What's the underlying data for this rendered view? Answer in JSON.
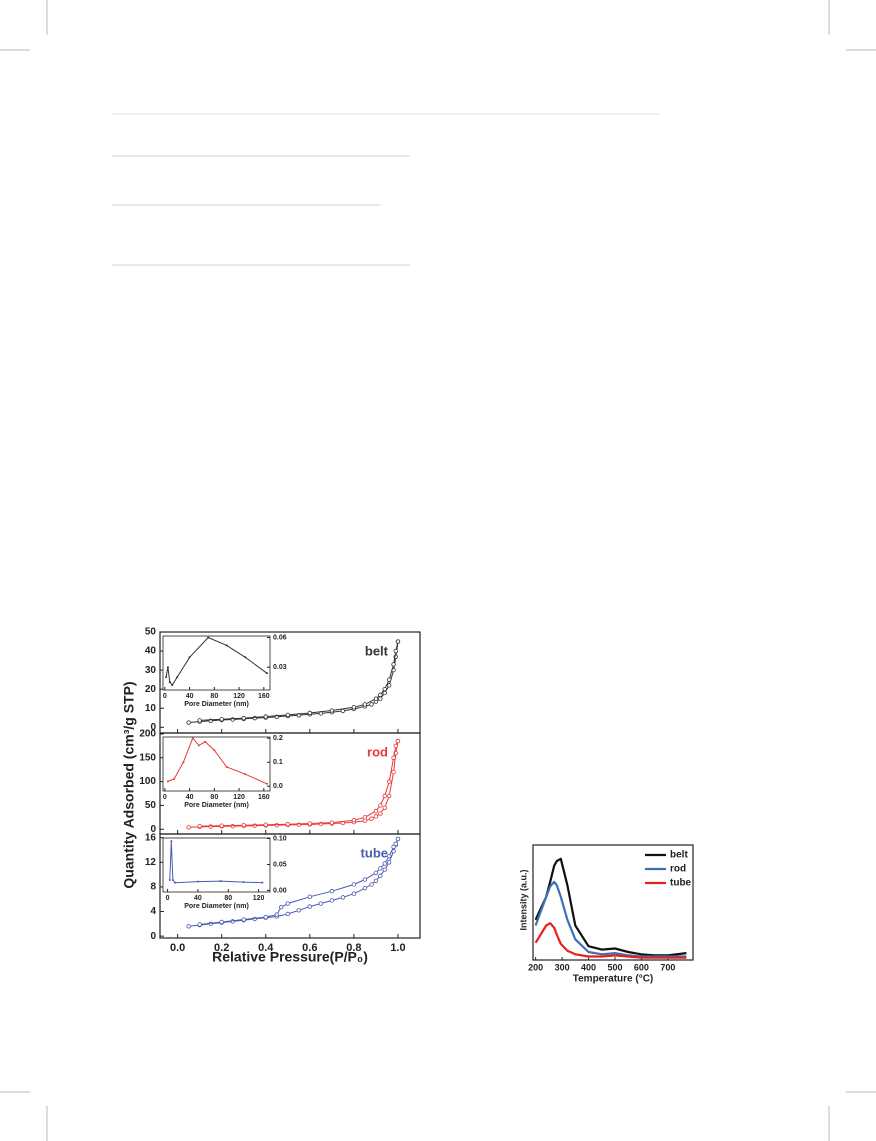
{
  "chart_data": [
    {
      "type": "stacked-line",
      "xlabel": "Relative Pressure(P/P₀)",
      "ylabel": "Quantity Adsorbed (cm³/g STP)",
      "xlim": [
        -0.08,
        1.1
      ],
      "xticks": [
        {
          "value": 0,
          "label": "0.0"
        },
        0.2,
        0.4,
        0.6,
        0.8,
        {
          "value": 1,
          "label": "1.0"
        }
      ],
      "panels": [
        {
          "label": "belt",
          "color": "#333333",
          "ylim": [
            -3,
            50
          ],
          "yticks": [
            0,
            10,
            20,
            30,
            40,
            50
          ],
          "series": [
            {
              "x": [
                0.05,
                0.1,
                0.15,
                0.2,
                0.25,
                0.3,
                0.35,
                0.4,
                0.45,
                0.5,
                0.55,
                0.6,
                0.65,
                0.7,
                0.75,
                0.8,
                0.85,
                0.88,
                0.9,
                0.92,
                0.94,
                0.96,
                0.98,
                0.99,
                1.0
              ],
              "values": [
                2.5,
                3,
                3.4,
                3.8,
                4.1,
                4.4,
                4.8,
                5.1,
                5.5,
                5.9,
                6.3,
                6.8,
                7.3,
                7.9,
                8.6,
                9.6,
                11,
                12,
                13.5,
                15,
                18,
                22,
                30,
                37,
                45
              ]
            },
            {
              "x": [
                1.0,
                0.99,
                0.98,
                0.96,
                0.94,
                0.92,
                0.9,
                0.85,
                0.8,
                0.7,
                0.6,
                0.5,
                0.4,
                0.3,
                0.2,
                0.1
              ],
              "values": [
                45,
                40,
                33,
                25,
                20,
                17,
                15,
                12,
                10.5,
                8.8,
                7.5,
                6.5,
                5.6,
                4.8,
                4.2,
                3.6
              ]
            }
          ],
          "inset": {
            "xlabel": "Pore Diameter (nm)",
            "xlim": [
              -3,
              170
            ],
            "xticks": [
              0,
              40,
              80,
              120,
              160
            ],
            "ylim": [
              0.007,
              0.0615
            ],
            "yticks": [
              0.03,
              0.06
            ],
            "x": [
              2,
              5,
              8,
              12,
              20,
              40,
              70,
              100,
              130,
              165
            ],
            "values": [
              0.02,
              0.03,
              0.015,
              0.012,
              0.02,
              0.04,
              0.06,
              0.052,
              0.04,
              0.024
            ]
          }
        },
        {
          "label": "rod",
          "color": "#e8373a",
          "ylim": [
            -10,
            202
          ],
          "yticks": [
            0,
            50,
            100,
            150,
            200
          ],
          "series": [
            {
              "x": [
                0.05,
                0.1,
                0.15,
                0.2,
                0.25,
                0.3,
                0.35,
                0.4,
                0.45,
                0.5,
                0.55,
                0.6,
                0.65,
                0.7,
                0.75,
                0.8,
                0.85,
                0.88,
                0.9,
                0.92,
                0.94,
                0.96,
                0.98,
                0.99,
                1.0
              ],
              "values": [
                4,
                5,
                5.5,
                6,
                6.5,
                7,
                7.5,
                8,
                8.5,
                9,
                9.5,
                10,
                11,
                12,
                13,
                15,
                18,
                22,
                27,
                33,
                45,
                70,
                120,
                160,
                185
              ]
            },
            {
              "x": [
                1.0,
                0.99,
                0.98,
                0.96,
                0.94,
                0.92,
                0.9,
                0.85,
                0.8,
                0.7,
                0.6,
                0.5,
                0.4,
                0.3,
                0.2,
                0.1
              ],
              "values": [
                185,
                175,
                150,
                100,
                70,
                50,
                38,
                25,
                19,
                14,
                12,
                10.5,
                9.5,
                8.5,
                7.5,
                6.5
              ]
            }
          ],
          "inset": {
            "xlabel": "Pore Diameter (nm)",
            "xlim": [
              -3,
              170
            ],
            "xticks": [
              0,
              40,
              80,
              120,
              160
            ],
            "ylim": [
              -0.02,
              0.205
            ],
            "yticks": [
              {
                "value": 0,
                "label": "0.0"
              },
              0.1,
              0.2
            ],
            "x": [
              5,
              15,
              30,
              45,
              55,
              65,
              80,
              100,
              130,
              165
            ],
            "values": [
              0.02,
              0.03,
              0.1,
              0.2,
              0.17,
              0.185,
              0.15,
              0.08,
              0.05,
              0.01
            ]
          }
        },
        {
          "label": "tube",
          "color": "#4a5bb0",
          "ylim": [
            -0.3,
            16.6
          ],
          "yticks": [
            0,
            4,
            8,
            12,
            16
          ],
          "series": [
            {
              "x": [
                0.05,
                0.1,
                0.15,
                0.2,
                0.25,
                0.3,
                0.35,
                0.4,
                0.45,
                0.5,
                0.55,
                0.6,
                0.65,
                0.7,
                0.75,
                0.8,
                0.85,
                0.88,
                0.9,
                0.92,
                0.94,
                0.96,
                0.98,
                0.99,
                1.0
              ],
              "values": [
                1.6,
                1.8,
                2,
                2.2,
                2.4,
                2.6,
                2.8,
                3,
                3.2,
                3.6,
                4.2,
                4.8,
                5.3,
                5.8,
                6.3,
                6.9,
                7.8,
                8.4,
                9,
                9.8,
                10.8,
                12,
                13.8,
                14.8,
                15.8
              ]
            },
            {
              "x": [
                1.0,
                0.99,
                0.98,
                0.96,
                0.94,
                0.92,
                0.9,
                0.85,
                0.8,
                0.7,
                0.6,
                0.5,
                0.47,
                0.45,
                0.4,
                0.3,
                0.2,
                0.1
              ],
              "values": [
                15.8,
                15,
                14.5,
                13,
                11.8,
                11,
                10.3,
                9.2,
                8.4,
                7.3,
                6.4,
                5.3,
                4.7,
                3.5,
                3.1,
                2.7,
                2.3,
                1.9
              ]
            }
          ],
          "inset": {
            "xlabel": "Pore Diameter (nm)",
            "xlim": [
              -6,
              135
            ],
            "xticks": [
              0,
              40,
              80,
              120
            ],
            "ylim": [
              -0.003,
              0.101
            ],
            "yticks": [
              {
                "value": 0,
                "label": "0.00"
              },
              0.05,
              {
                "value": 0.1,
                "label": "0.10"
              }
            ],
            "x": [
              3,
              5,
              7,
              10,
              40,
              70,
              100,
              125
            ],
            "values": [
              0.02,
              0.095,
              0.02,
              0.015,
              0.017,
              0.018,
              0.016,
              0.015
            ]
          }
        }
      ]
    },
    {
      "type": "line",
      "xlabel": "Temperature (°C)",
      "ylabel": "Intensity (a.u.)",
      "xlim": [
        190,
        795
      ],
      "xticks": [
        200,
        300,
        400,
        500,
        600,
        700
      ],
      "ylim": [
        0,
        100
      ],
      "x": [
        200,
        240,
        255,
        270,
        280,
        295,
        320,
        350,
        400,
        450,
        500,
        550,
        600,
        650,
        700,
        770
      ],
      "series": [
        {
          "name": "belt",
          "color": "#111111",
          "values": [
            35,
            55,
            68,
            82,
            86,
            88,
            65,
            30,
            12,
            9,
            10,
            7,
            5,
            4,
            4,
            6
          ]
        },
        {
          "name": "rod",
          "color": "#3f6fb5",
          "values": [
            30,
            55,
            64,
            68,
            65,
            55,
            35,
            18,
            7,
            5,
            6,
            4,
            3,
            3,
            3,
            3
          ]
        },
        {
          "name": "tube",
          "color": "#e8201e",
          "values": [
            15,
            30,
            32,
            28,
            22,
            14,
            8,
            5,
            3,
            3,
            4,
            3,
            2,
            2,
            2,
            2
          ]
        }
      ]
    }
  ]
}
